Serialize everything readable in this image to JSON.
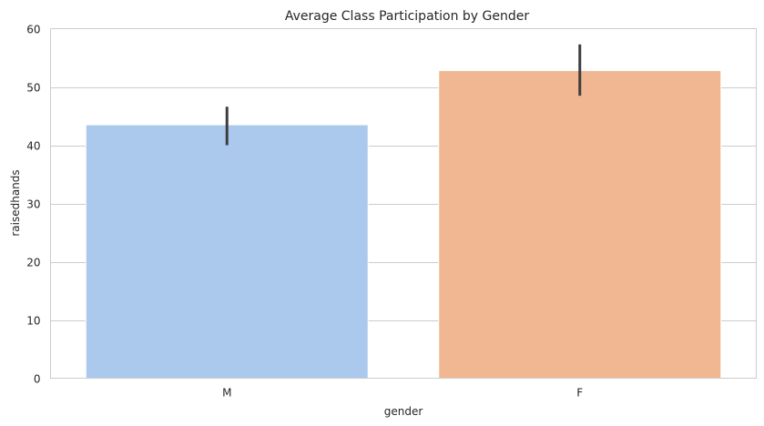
{
  "chart_data": {
    "type": "bar",
    "title": "Average Class Participation by Gender",
    "xlabel": "gender",
    "ylabel": "raisedhands",
    "categories": [
      "M",
      "F"
    ],
    "values": [
      43.5,
      52.8
    ],
    "ci_low": [
      40.0,
      48.5
    ],
    "ci_high": [
      46.6,
      57.3
    ],
    "ylim": [
      0,
      60
    ],
    "yticks": [
      0,
      10,
      20,
      30,
      40,
      50,
      60
    ],
    "grid": "horizontal",
    "colors": [
      "#abc9ec",
      "#f0b792"
    ],
    "errorbar_color": "#3d3d3d"
  }
}
